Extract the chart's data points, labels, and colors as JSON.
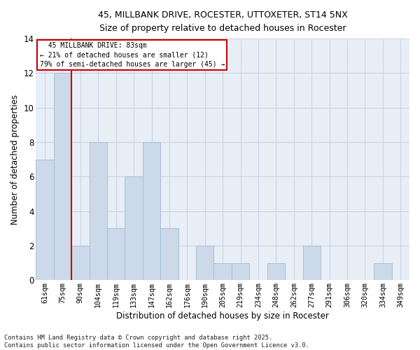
{
  "title_line1": "45, MILLBANK DRIVE, ROCESTER, UTTOXETER, ST14 5NX",
  "title_line2": "Size of property relative to detached houses in Rocester",
  "xlabel": "Distribution of detached houses by size in Rocester",
  "ylabel": "Number of detached properties",
  "categories": [
    "61sqm",
    "75sqm",
    "90sqm",
    "104sqm",
    "119sqm",
    "133sqm",
    "147sqm",
    "162sqm",
    "176sqm",
    "190sqm",
    "205sqm",
    "219sqm",
    "234sqm",
    "248sqm",
    "262sqm",
    "277sqm",
    "291sqm",
    "306sqm",
    "320sqm",
    "334sqm",
    "349sqm"
  ],
  "values": [
    7,
    12,
    2,
    8,
    3,
    6,
    8,
    3,
    0,
    2,
    1,
    1,
    0,
    1,
    0,
    2,
    0,
    0,
    0,
    1,
    0
  ],
  "bar_color": "#ccd9e8",
  "bar_edge_color": "#a8bfd4",
  "grid_color": "#c8d4e4",
  "background_color": "#e8eef6",
  "vline_x_index": 1.5,
  "vline_color": "#cc0000",
  "annotation_text": "  45 MILLBANK DRIVE: 83sqm\n← 21% of detached houses are smaller (12)\n79% of semi-detached houses are larger (45) →",
  "annotation_box_color": "#cc0000",
  "ylim": [
    0,
    14
  ],
  "yticks": [
    0,
    2,
    4,
    6,
    8,
    10,
    12,
    14
  ],
  "footnote": "Contains HM Land Registry data © Crown copyright and database right 2025.\nContains public sector information licensed under the Open Government Licence v3.0."
}
